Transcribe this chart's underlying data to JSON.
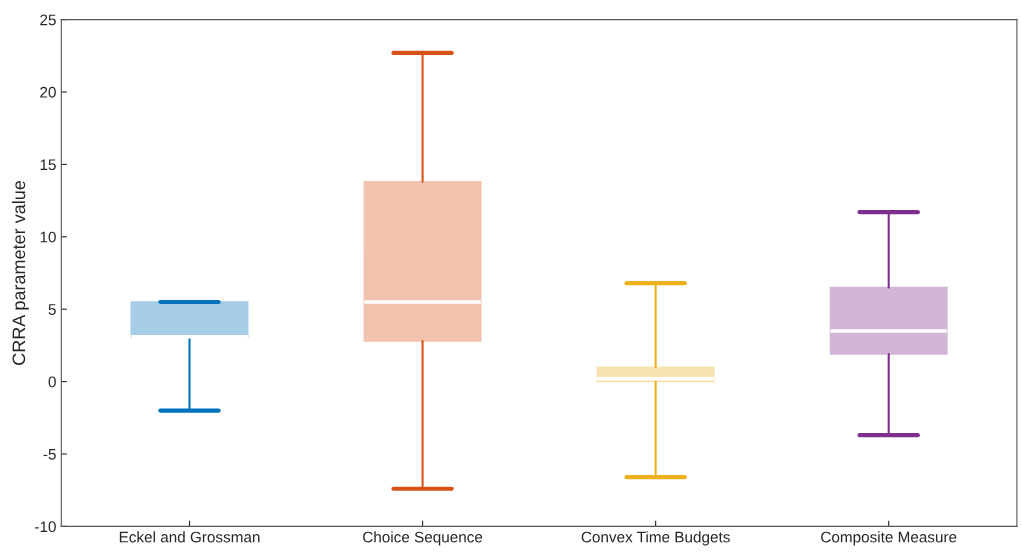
{
  "chart_data": {
    "type": "box",
    "ylabel": "CRRA parameter value",
    "categories": [
      "Eckel and Grossman",
      "Choice Sequence",
      "Convex Time Budgets",
      "Composite Measure"
    ],
    "colors": [
      "#0072bd",
      "#d95319",
      "#edb120",
      "#7e2f8e"
    ],
    "boxes": [
      {
        "low": -2.0,
        "q1": 3.1,
        "median": 3.1,
        "q3": 5.5,
        "high": 5.5
      },
      {
        "low": -7.4,
        "q1": 2.8,
        "median": 5.5,
        "q3": 13.8,
        "high": 22.7
      },
      {
        "low": -6.6,
        "q1": 0.0,
        "median": 0.2,
        "q3": 1.0,
        "high": 6.8
      },
      {
        "low": -3.7,
        "q1": 1.9,
        "median": 3.5,
        "q3": 6.5,
        "high": 11.7
      }
    ],
    "ylim": [
      -10,
      25
    ],
    "yticks": [
      -10,
      -5,
      0,
      5,
      10,
      15,
      20,
      25
    ],
    "grid": false
  }
}
